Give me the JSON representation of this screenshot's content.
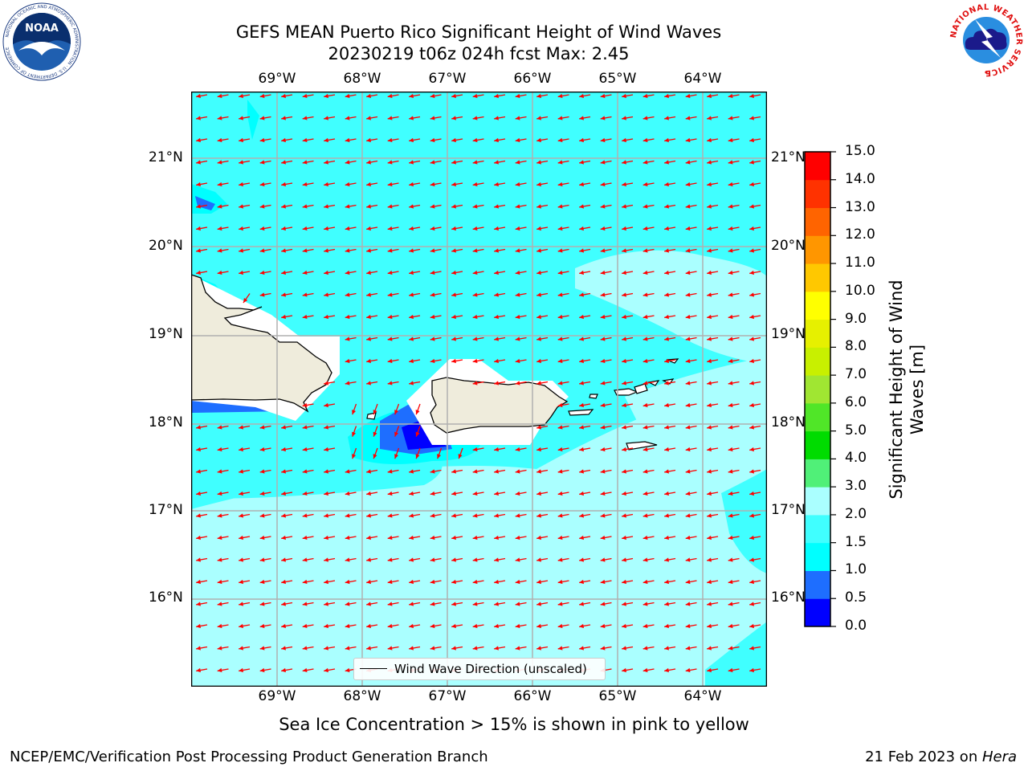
{
  "header": {
    "title_line1": "GEFS MEAN Puerto Rico Significant Height of Wind Waves",
    "title_line2": "20230219 t06z 024h fcst   Max: 2.45"
  },
  "map": {
    "lon_labels": [
      "69°W",
      "68°W",
      "67°W",
      "66°W",
      "65°W",
      "64°W"
    ],
    "lat_labels": [
      "21°N",
      "20°N",
      "19°N",
      "18°N",
      "17°N",
      "16°N"
    ],
    "legend_label": "Wind Wave Direction (unscaled)",
    "arrow_color": "#ff0000",
    "land_color": "#efecdc"
  },
  "colorbar": {
    "title_line1": "Significant Height of Wind",
    "title_line2": "Waves [m]",
    "ticks": [
      "0.0",
      "0.5",
      "1.0",
      "1.5",
      "2.0",
      "3.0",
      "4.0",
      "5.0",
      "6.0",
      "7.0",
      "8.0",
      "9.0",
      "10.0",
      "11.0",
      "12.0",
      "13.0",
      "14.0",
      "15.0"
    ],
    "colors": [
      "#0000ff",
      "#1e6eff",
      "#00ffff",
      "#40ffff",
      "#aaffff",
      "#50f078",
      "#00dc00",
      "#50e628",
      "#a0e632",
      "#c8f000",
      "#e6f000",
      "#ffff00",
      "#ffc800",
      "#ff9600",
      "#ff6400",
      "#ff3200",
      "#ff0000"
    ]
  },
  "logos": {
    "noaa_text": "NOAA",
    "noaa_ring": "NATIONAL OCEANIC AND ATMOSPHERIC ADMINISTRATION · U.S. DEPARTMENT OF COMMERCE",
    "nws_ring": "NATIONAL WEATHER SERVICE"
  },
  "footer": {
    "note": "Sea Ice Concentration > 15% is shown in pink to yellow",
    "left": "NCEP/EMC/Verification Post Processing Product Generation Branch",
    "right_prefix": "21 Feb 2023 on ",
    "right_host": "Hera"
  }
}
